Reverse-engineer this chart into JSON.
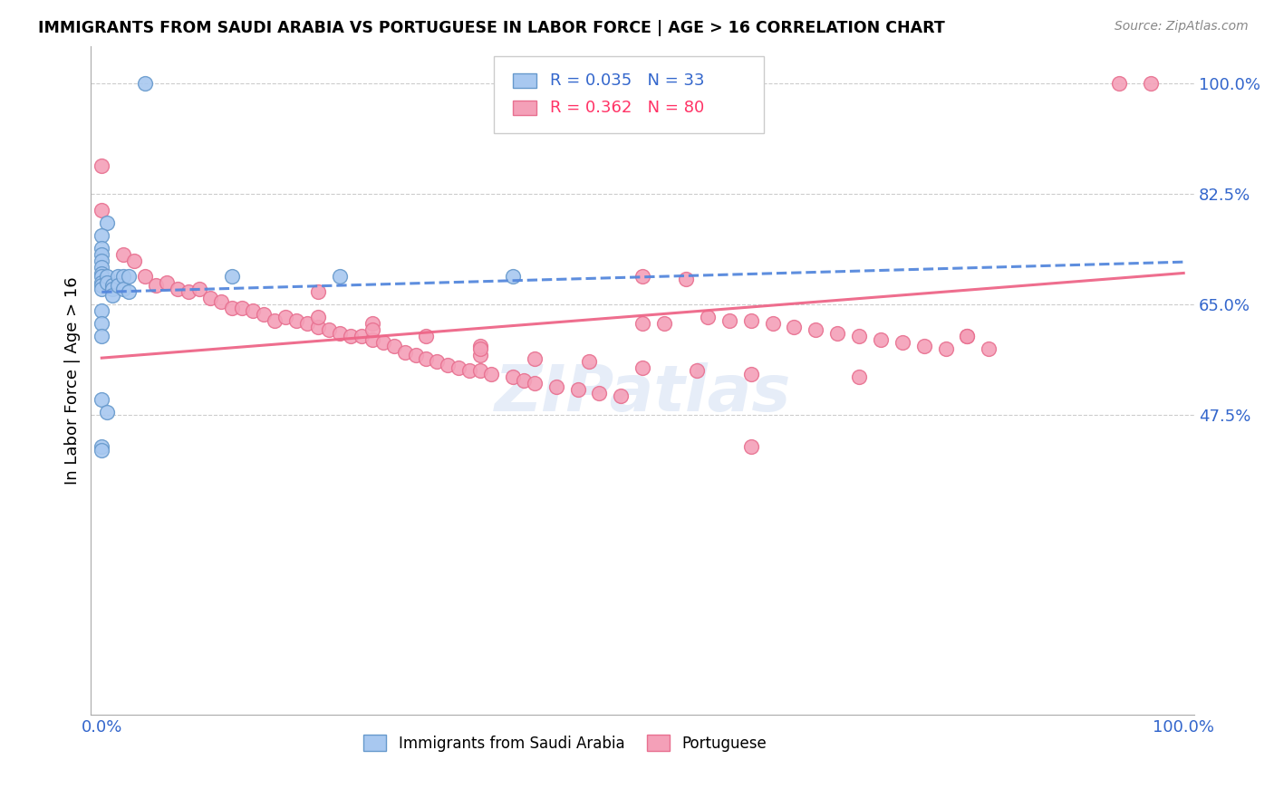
{
  "title": "IMMIGRANTS FROM SAUDI ARABIA VS PORTUGUESE IN LABOR FORCE | AGE > 16 CORRELATION CHART",
  "source": "Source: ZipAtlas.com",
  "ylabel": "In Labor Force | Age > 16",
  "xlim": [
    0.0,
    1.0
  ],
  "ylim": [
    0.0,
    1.05
  ],
  "yticks": [
    0.475,
    0.65,
    0.825,
    1.0
  ],
  "ytick_labels": [
    "47.5%",
    "65.0%",
    "82.5%",
    "100.0%"
  ],
  "xticks": [
    0.0,
    0.2,
    0.4,
    0.6,
    0.8,
    1.0
  ],
  "xtick_labels": [
    "0.0%",
    "",
    "",
    "",
    "",
    "100.0%"
  ],
  "blue_R": 0.035,
  "blue_N": 33,
  "pink_R": 0.362,
  "pink_N": 80,
  "blue_color": "#A8C8F0",
  "pink_color": "#F4A0B8",
  "blue_edge_color": "#6699CC",
  "pink_edge_color": "#E87090",
  "blue_line_color": "#5588DD",
  "pink_line_color": "#EE6688",
  "legend_blue_color": "#3366CC",
  "legend_pink_color": "#FF3366",
  "watermark": "ZIPatlas",
  "blue_x": [
    0.005,
    0.0,
    0.0,
    0.0,
    0.0,
    0.0,
    0.0,
    0.0,
    0.0,
    0.0,
    0.0,
    0.005,
    0.005,
    0.01,
    0.01,
    0.01,
    0.015,
    0.015,
    0.02,
    0.02,
    0.025,
    0.025,
    0.0,
    0.0,
    0.0,
    0.12,
    0.22,
    0.0,
    0.38,
    0.0,
    0.0,
    0.005,
    0.04
  ],
  "blue_y": [
    0.78,
    0.76,
    0.74,
    0.73,
    0.72,
    0.71,
    0.7,
    0.695,
    0.685,
    0.68,
    0.675,
    0.695,
    0.685,
    0.68,
    0.675,
    0.665,
    0.695,
    0.68,
    0.695,
    0.675,
    0.695,
    0.67,
    0.64,
    0.62,
    0.6,
    0.695,
    0.695,
    0.5,
    0.695,
    0.425,
    0.42,
    0.48,
    1.0
  ],
  "pink_x": [
    0.97,
    0.94,
    0.0,
    0.0,
    0.02,
    0.03,
    0.04,
    0.05,
    0.06,
    0.07,
    0.08,
    0.09,
    0.1,
    0.11,
    0.12,
    0.13,
    0.14,
    0.15,
    0.16,
    0.17,
    0.18,
    0.19,
    0.2,
    0.21,
    0.22,
    0.23,
    0.24,
    0.25,
    0.26,
    0.27,
    0.28,
    0.29,
    0.3,
    0.31,
    0.32,
    0.33,
    0.34,
    0.35,
    0.36,
    0.38,
    0.39,
    0.4,
    0.42,
    0.44,
    0.46,
    0.48,
    0.5,
    0.52,
    0.54,
    0.56,
    0.58,
    0.6,
    0.62,
    0.64,
    0.66,
    0.68,
    0.7,
    0.72,
    0.74,
    0.76,
    0.78,
    0.8,
    0.82,
    0.35,
    0.2,
    0.2,
    0.25,
    0.3,
    0.4,
    0.45,
    0.5,
    0.55,
    0.6,
    0.7,
    0.8,
    0.35,
    0.5,
    0.25,
    0.35,
    0.6
  ],
  "pink_y": [
    1.0,
    1.0,
    0.87,
    0.8,
    0.73,
    0.72,
    0.695,
    0.68,
    0.685,
    0.675,
    0.67,
    0.675,
    0.66,
    0.655,
    0.645,
    0.645,
    0.64,
    0.635,
    0.625,
    0.63,
    0.625,
    0.62,
    0.615,
    0.61,
    0.605,
    0.6,
    0.6,
    0.595,
    0.59,
    0.585,
    0.575,
    0.57,
    0.565,
    0.56,
    0.555,
    0.55,
    0.545,
    0.545,
    0.54,
    0.535,
    0.53,
    0.525,
    0.52,
    0.515,
    0.51,
    0.505,
    0.695,
    0.62,
    0.69,
    0.63,
    0.625,
    0.625,
    0.62,
    0.615,
    0.61,
    0.605,
    0.6,
    0.595,
    0.59,
    0.585,
    0.58,
    0.6,
    0.58,
    0.57,
    0.67,
    0.63,
    0.62,
    0.6,
    0.565,
    0.56,
    0.55,
    0.545,
    0.54,
    0.535,
    0.6,
    0.585,
    0.62,
    0.61,
    0.58,
    0.425
  ]
}
